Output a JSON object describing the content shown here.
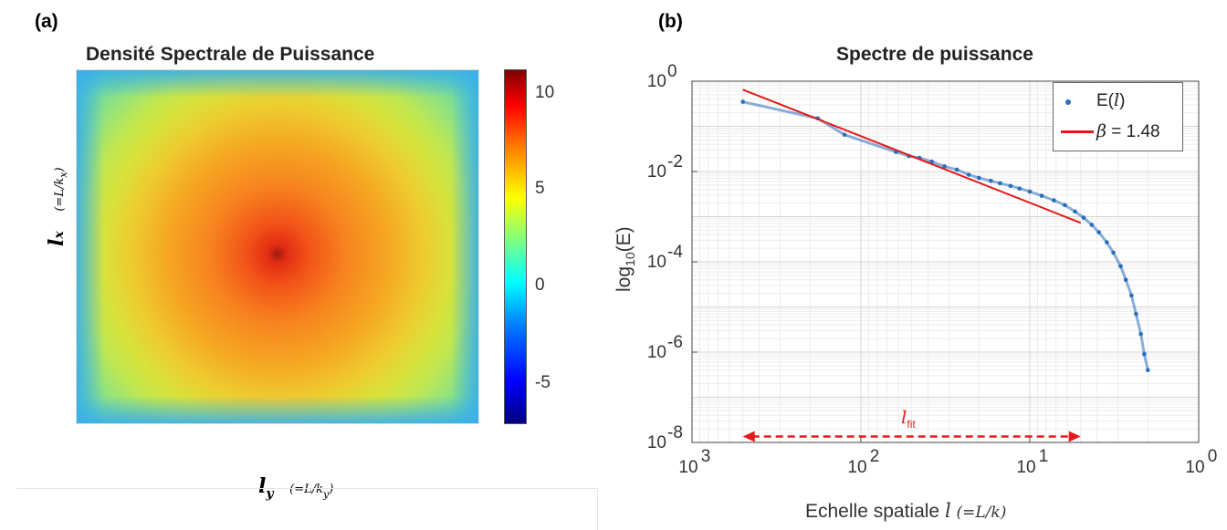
{
  "panel_a": {
    "label": "(a)",
    "title": "Densité Spectrale de Puissance",
    "ylabel": {
      "sym": "l",
      "sub": "x",
      "paren": "(=L/k"
    },
    "ylabel_paren_sub": "x",
    "xlabel": {
      "sym": "l",
      "sub": "y",
      "paren": "(=L/k"
    },
    "xlabel_paren_sub": "y"
  },
  "panel_b": {
    "label": "(b)",
    "title": "Spectre de puissance",
    "xlabel_text": "Echelle spatiale",
    "xlabel_sym": "l",
    "xlabel_paren": "(=L/k)",
    "ylabel_pre": "log",
    "ylabel_sub": "10",
    "ylabel_post": "(E)",
    "annotation_main": "l",
    "annotation_sub": "fit"
  },
  "chart_data": [
    {
      "type": "heatmap",
      "title": "Densité Spectrale de Puissance",
      "colorbar_ticks": [
        "10",
        "5",
        "0",
        "-5"
      ],
      "colorbar_range": [
        -8,
        11
      ],
      "colormap": "jet",
      "peak_location": "center"
    },
    {
      "type": "scatter",
      "title": "Spectre de puissance",
      "xscale": "log",
      "yscale": "log",
      "x_reversed": true,
      "xlim": [
        1000,
        1
      ],
      "ylim": [
        1e-08,
        1
      ],
      "grid": true,
      "legend_position": "top-right",
      "x_ticks": [
        {
          "v": 1000,
          "mant": "10",
          "exp": "3"
        },
        {
          "v": 100,
          "mant": "10",
          "exp": "2"
        },
        {
          "v": 10,
          "mant": "10",
          "exp": "1"
        },
        {
          "v": 1,
          "mant": "10",
          "exp": "0"
        }
      ],
      "y_ticks": [
        {
          "v": 1,
          "mant": "10",
          "exp": "0"
        },
        {
          "v": 0.01,
          "mant": "10",
          "exp": "-2"
        },
        {
          "v": 0.0001,
          "mant": "10",
          "exp": "-4"
        },
        {
          "v": 1e-06,
          "mant": "10",
          "exp": "-6"
        },
        {
          "v": 1e-08,
          "mant": "10",
          "exp": "-8"
        }
      ],
      "series": [
        {
          "name": "E(l)",
          "legend_main": "E(",
          "legend_sym": "l",
          "legend_close": ")",
          "color": "#2a6ebb",
          "points": [
            [
              500,
              0.35
            ],
            [
              180,
              0.15
            ],
            [
              125,
              0.065
            ],
            [
              62,
              0.027
            ],
            [
              52,
              0.022
            ],
            [
              45,
              0.02
            ],
            [
              38,
              0.0165
            ],
            [
              32,
              0.013
            ],
            [
              27,
              0.011
            ],
            [
              23,
              0.0085
            ],
            [
              20,
              0.0072
            ],
            [
              17,
              0.0062
            ],
            [
              15,
              0.0055
            ],
            [
              13,
              0.0048
            ],
            [
              11.5,
              0.0042
            ],
            [
              10,
              0.0036
            ],
            [
              8.5,
              0.0029
            ],
            [
              7.2,
              0.0023
            ],
            [
              6.2,
              0.0018
            ],
            [
              5.4,
              0.0013
            ],
            [
              4.8,
              0.00095
            ],
            [
              4.3,
              0.00066
            ],
            [
              3.9,
              0.00045
            ],
            [
              3.5,
              0.00027
            ],
            [
              3.2,
              0.00016
            ],
            [
              2.9,
              8e-05
            ],
            [
              2.7,
              4e-05
            ],
            [
              2.5,
              1.8e-05
            ],
            [
              2.35,
              7e-06
            ],
            [
              2.2,
              2.5e-06
            ],
            [
              2.1,
              9e-07
            ],
            [
              2.0,
              4e-07
            ]
          ]
        },
        {
          "name": "β = 1.48",
          "legend_sym": "β",
          "legend_rest": " = 1.48",
          "color": "#e51a1a",
          "type": "line",
          "points": [
            [
              500,
              0.65
            ],
            [
              5,
              0.00073
            ]
          ]
        }
      ],
      "annotation": {
        "text": "l_fit",
        "x_range": [
          500,
          5
        ],
        "y": 1.35e-08,
        "color": "#e51a1a",
        "style": "dashed double arrow"
      }
    }
  ]
}
